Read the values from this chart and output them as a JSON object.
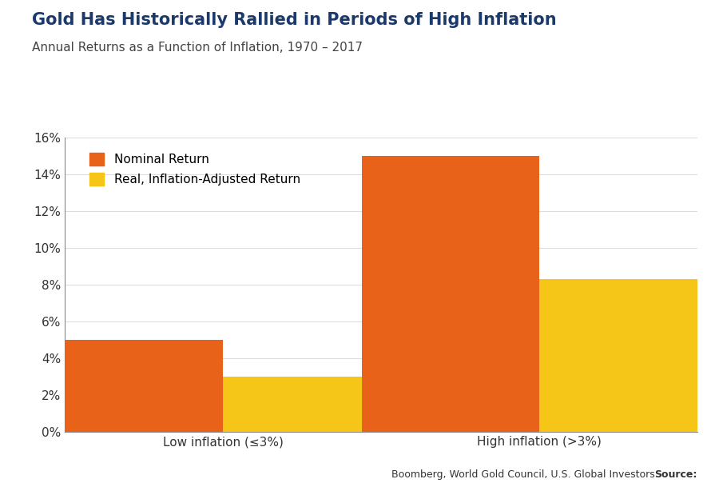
{
  "title": "Gold Has Historically Rallied in Periods of High Inflation",
  "subtitle": "Annual Returns as a Function of Inflation, 1970 – 2017",
  "categories": [
    "Low inflation (≤3%)",
    "High inflation (>3%)"
  ],
  "nominal_returns": [
    0.05,
    0.15
  ],
  "real_returns": [
    0.03,
    0.083
  ],
  "nominal_color": "#E8621A",
  "real_color": "#F5C518",
  "ylim": [
    0,
    0.16
  ],
  "ytick_vals": [
    0.0,
    0.02,
    0.04,
    0.06,
    0.08,
    0.1,
    0.12,
    0.14,
    0.16
  ],
  "ytick_labels": [
    "0%",
    "2%",
    "4%",
    "6%",
    "8%",
    "10%",
    "12%",
    "14%",
    "16%"
  ],
  "title_color": "#1B3A6B",
  "subtitle_color": "#444444",
  "source_label": "Source:",
  "source_text": " Boomberg, World Gold Council, U.S. Global Investors",
  "bar_width": 0.28,
  "group_centers": [
    0.25,
    0.75
  ],
  "xlim": [
    0.0,
    1.0
  ],
  "legend_nominal": "Nominal Return",
  "legend_real": "Real, Inflation-Adjusted Return",
  "bg_color": "#ffffff",
  "grid_color": "#dddddd",
  "spine_color": "#888888",
  "tick_fontsize": 11,
  "xlabel_fontsize": 11,
  "title_fontsize": 15,
  "subtitle_fontsize": 11,
  "legend_fontsize": 11,
  "source_fontsize": 9
}
